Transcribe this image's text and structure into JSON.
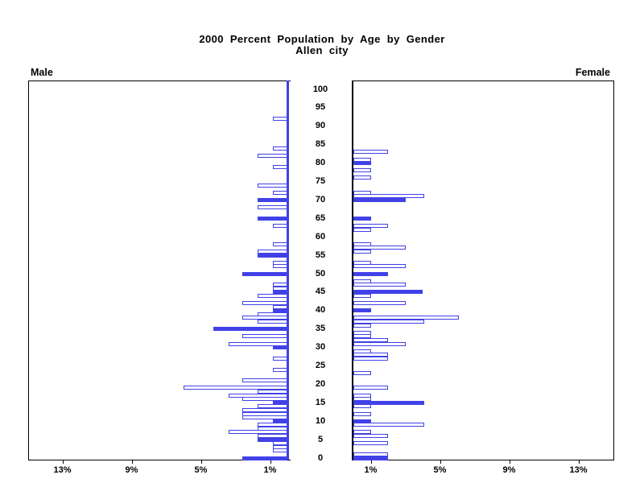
{
  "title": {
    "line1": "2000 Percent Population by Age by Gender",
    "line2": "Allen city"
  },
  "panels": {
    "left_label": "Male",
    "right_label": "Female"
  },
  "age_labels": [
    "100",
    "95",
    "90",
    "85",
    "80",
    "75",
    "70",
    "65",
    "60",
    "55",
    "50",
    "45",
    "40",
    "35",
    "30",
    "25",
    "20",
    "15",
    "10",
    "5",
    "0"
  ],
  "x_ticks_left": [
    "13%",
    "9%",
    "5%",
    "1%"
  ],
  "x_ticks_right": [
    "1%",
    "5%",
    "9%",
    "13%"
  ],
  "colors": {
    "bar_blue": "#4141e8",
    "axis_black": "#000000",
    "background": "#ffffff"
  },
  "chart_data": {
    "type": "bar",
    "subtype": "population-pyramid",
    "title": "2000 Percent Population by Age by Gender",
    "subtitle": "Allen city",
    "value_unit": "percent of gender population",
    "age_axis": {
      "min": 0,
      "max": 100,
      "label_step": 5,
      "labels": [
        "100",
        "95",
        "90",
        "85",
        "80",
        "75",
        "70",
        "65",
        "60",
        "55",
        "50",
        "45",
        "40",
        "35",
        "30",
        "25",
        "20",
        "15",
        "10",
        "5",
        "0"
      ]
    },
    "pct_axis": {
      "tick_values": [
        1,
        5,
        9,
        13
      ],
      "tick_suffix": "%",
      "approx_max": 15
    },
    "style_note": "bars at ages divisible by 5 are drawn solid blue; all other single-year-of-age bars are white with blue outline",
    "series": [
      {
        "name": "Male",
        "side": "left",
        "bars": [
          {
            "age": 92,
            "pct": 0.85,
            "solid": false
          },
          {
            "age": 84,
            "pct": 0.85,
            "solid": false
          },
          {
            "age": 82,
            "pct": 1.7,
            "solid": false
          },
          {
            "age": 79,
            "pct": 0.85,
            "solid": false
          },
          {
            "age": 74,
            "pct": 1.7,
            "solid": false
          },
          {
            "age": 72,
            "pct": 0.85,
            "solid": false
          },
          {
            "age": 70,
            "pct": 1.7,
            "solid": true
          },
          {
            "age": 68,
            "pct": 1.7,
            "solid": false
          },
          {
            "age": 65,
            "pct": 1.7,
            "solid": true
          },
          {
            "age": 63,
            "pct": 0.85,
            "solid": false
          },
          {
            "age": 58,
            "pct": 0.85,
            "solid": false
          },
          {
            "age": 56,
            "pct": 1.7,
            "solid": false
          },
          {
            "age": 55,
            "pct": 1.7,
            "solid": true
          },
          {
            "age": 53,
            "pct": 0.85,
            "solid": false
          },
          {
            "age": 52,
            "pct": 0.85,
            "solid": false
          },
          {
            "age": 50,
            "pct": 2.6,
            "solid": true
          },
          {
            "age": 47,
            "pct": 0.85,
            "solid": false
          },
          {
            "age": 46,
            "pct": 0.85,
            "solid": false
          },
          {
            "age": 45,
            "pct": 0.85,
            "solid": true
          },
          {
            "age": 44,
            "pct": 1.7,
            "solid": false
          },
          {
            "age": 42,
            "pct": 2.6,
            "solid": false
          },
          {
            "age": 41,
            "pct": 0.85,
            "solid": false
          },
          {
            "age": 40,
            "pct": 0.85,
            "solid": true
          },
          {
            "age": 39,
            "pct": 1.7,
            "solid": false
          },
          {
            "age": 38,
            "pct": 2.6,
            "solid": false
          },
          {
            "age": 37,
            "pct": 1.7,
            "solid": false
          },
          {
            "age": 35,
            "pct": 4.3,
            "solid": true
          },
          {
            "age": 33,
            "pct": 2.6,
            "solid": false
          },
          {
            "age": 31,
            "pct": 3.4,
            "solid": false
          },
          {
            "age": 30,
            "pct": 0.85,
            "solid": true
          },
          {
            "age": 27,
            "pct": 0.85,
            "solid": false
          },
          {
            "age": 24,
            "pct": 0.85,
            "solid": false
          },
          {
            "age": 21,
            "pct": 2.6,
            "solid": false
          },
          {
            "age": 19,
            "pct": 6.0,
            "solid": false
          },
          {
            "age": 18,
            "pct": 1.7,
            "solid": false
          },
          {
            "age": 17,
            "pct": 3.4,
            "solid": false
          },
          {
            "age": 16,
            "pct": 2.6,
            "solid": false
          },
          {
            "age": 15,
            "pct": 0.85,
            "solid": true
          },
          {
            "age": 14,
            "pct": 1.7,
            "solid": false
          },
          {
            "age": 13,
            "pct": 2.6,
            "solid": false
          },
          {
            "age": 12,
            "pct": 2.6,
            "solid": false
          },
          {
            "age": 11,
            "pct": 2.6,
            "solid": false
          },
          {
            "age": 10,
            "pct": 0.85,
            "solid": true
          },
          {
            "age": 9,
            "pct": 1.7,
            "solid": false
          },
          {
            "age": 8,
            "pct": 1.7,
            "solid": false
          },
          {
            "age": 7,
            "pct": 3.4,
            "solid": false
          },
          {
            "age": 6,
            "pct": 1.7,
            "solid": false
          },
          {
            "age": 5,
            "pct": 1.7,
            "solid": true
          },
          {
            "age": 4,
            "pct": 0.85,
            "solid": false
          },
          {
            "age": 3,
            "pct": 0.85,
            "solid": false
          },
          {
            "age": 2,
            "pct": 0.85,
            "solid": false
          },
          {
            "age": 0,
            "pct": 2.6,
            "solid": true
          }
        ]
      },
      {
        "name": "Female",
        "side": "right",
        "bars": [
          {
            "age": 83,
            "pct": 2.0,
            "solid": false
          },
          {
            "age": 81,
            "pct": 1.0,
            "solid": false
          },
          {
            "age": 80,
            "pct": 1.0,
            "solid": true
          },
          {
            "age": 78,
            "pct": 1.0,
            "solid": false
          },
          {
            "age": 76,
            "pct": 1.0,
            "solid": false
          },
          {
            "age": 72,
            "pct": 1.0,
            "solid": false
          },
          {
            "age": 71,
            "pct": 4.1,
            "solid": false
          },
          {
            "age": 70,
            "pct": 3.0,
            "solid": true
          },
          {
            "age": 65,
            "pct": 1.0,
            "solid": true
          },
          {
            "age": 63,
            "pct": 2.0,
            "solid": false
          },
          {
            "age": 62,
            "pct": 1.0,
            "solid": false
          },
          {
            "age": 58,
            "pct": 1.0,
            "solid": false
          },
          {
            "age": 57,
            "pct": 3.0,
            "solid": false
          },
          {
            "age": 56,
            "pct": 1.0,
            "solid": false
          },
          {
            "age": 53,
            "pct": 1.0,
            "solid": false
          },
          {
            "age": 52,
            "pct": 3.0,
            "solid": false
          },
          {
            "age": 50,
            "pct": 2.0,
            "solid": true
          },
          {
            "age": 48,
            "pct": 1.0,
            "solid": false
          },
          {
            "age": 47,
            "pct": 3.0,
            "solid": false
          },
          {
            "age": 45,
            "pct": 4.0,
            "solid": true
          },
          {
            "age": 44,
            "pct": 1.0,
            "solid": false
          },
          {
            "age": 42,
            "pct": 3.0,
            "solid": false
          },
          {
            "age": 40,
            "pct": 1.0,
            "solid": true
          },
          {
            "age": 38,
            "pct": 6.1,
            "solid": false
          },
          {
            "age": 37,
            "pct": 4.1,
            "solid": false
          },
          {
            "age": 36,
            "pct": 1.0,
            "solid": false
          },
          {
            "age": 34,
            "pct": 1.0,
            "solid": false
          },
          {
            "age": 33,
            "pct": 1.0,
            "solid": false
          },
          {
            "age": 32,
            "pct": 2.0,
            "solid": false
          },
          {
            "age": 31,
            "pct": 3.0,
            "solid": false
          },
          {
            "age": 29,
            "pct": 1.0,
            "solid": false
          },
          {
            "age": 28,
            "pct": 2.0,
            "solid": false
          },
          {
            "age": 27,
            "pct": 2.0,
            "solid": false
          },
          {
            "age": 23,
            "pct": 1.0,
            "solid": false
          },
          {
            "age": 19,
            "pct": 2.0,
            "solid": false
          },
          {
            "age": 17,
            "pct": 1.0,
            "solid": false
          },
          {
            "age": 16,
            "pct": 1.0,
            "solid": false
          },
          {
            "age": 15,
            "pct": 4.1,
            "solid": true
          },
          {
            "age": 14,
            "pct": 1.0,
            "solid": false
          },
          {
            "age": 12,
            "pct": 1.0,
            "solid": false
          },
          {
            "age": 10,
            "pct": 1.0,
            "solid": true
          },
          {
            "age": 9,
            "pct": 4.1,
            "solid": false
          },
          {
            "age": 7,
            "pct": 1.0,
            "solid": false
          },
          {
            "age": 6,
            "pct": 2.0,
            "solid": false
          },
          {
            "age": 4,
            "pct": 2.0,
            "solid": false
          },
          {
            "age": 1,
            "pct": 2.0,
            "solid": false
          },
          {
            "age": 0,
            "pct": 2.0,
            "solid": true
          }
        ]
      }
    ]
  }
}
